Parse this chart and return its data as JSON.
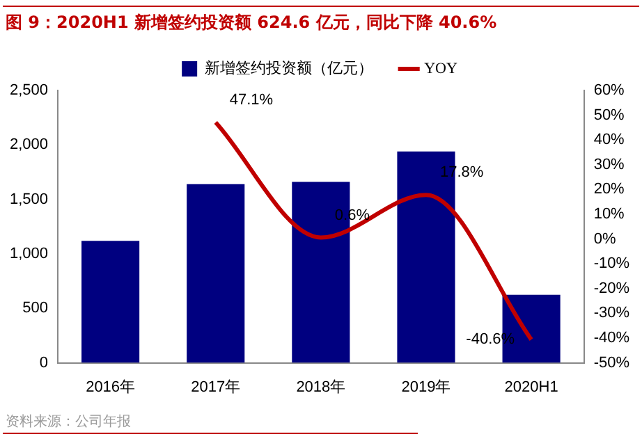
{
  "chart_data": {
    "type": "bar",
    "title": "图 9：2020H1 新增签约投资额 624.6 亿元，同比下降 40.6%",
    "annotations": [
      "资料来源：公司年报"
    ],
    "categories": [
      "2016年",
      "2017年",
      "2018年",
      "2019年",
      "2020H1"
    ],
    "series": [
      {
        "name": "新增签约投资额（亿元）",
        "color": "#000080",
        "values": [
          1120,
          1640,
          1660,
          1940,
          624.6
        ]
      },
      {
        "name": "YOY",
        "type": "line",
        "axis": "y2",
        "color": "#c00000",
        "values": [
          null,
          47.1,
          0.6,
          17.8,
          -40.6
        ],
        "value_labels": [
          null,
          "47.1%",
          "0.6%",
          "17.8%",
          "-40.6%"
        ]
      }
    ],
    "ylim": [
      0,
      2500
    ],
    "yticks": [
      {
        "value": 0,
        "label": "0"
      },
      {
        "value": 500,
        "label": "500"
      },
      {
        "value": 1000,
        "label": "1,000"
      },
      {
        "value": 1500,
        "label": "1,500"
      },
      {
        "value": 2000,
        "label": "2,000"
      },
      {
        "value": 2500,
        "label": "2,500"
      }
    ],
    "y2lim": [
      -50,
      60
    ],
    "y2ticks": [
      {
        "value": -50,
        "label": "-50%"
      },
      {
        "value": -40,
        "label": "-40%"
      },
      {
        "value": -30,
        "label": "-30%"
      },
      {
        "value": -20,
        "label": "-20%"
      },
      {
        "value": -10,
        "label": "-10%"
      },
      {
        "value": 0,
        "label": "0%"
      },
      {
        "value": 10,
        "label": "10%"
      },
      {
        "value": 20,
        "label": "20%"
      },
      {
        "value": 30,
        "label": "30%"
      },
      {
        "value": 40,
        "label": "40%"
      },
      {
        "value": 50,
        "label": "50%"
      },
      {
        "value": 60,
        "label": "60%"
      }
    ],
    "legend": "top",
    "grid": false,
    "marker": "none"
  }
}
